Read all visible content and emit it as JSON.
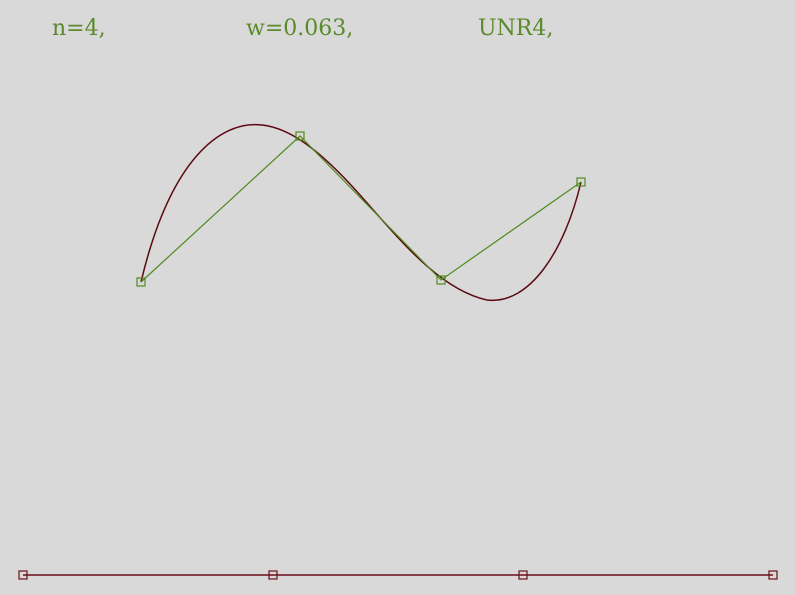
{
  "header": {
    "n_label": "n=4,",
    "w_label": "w=0.063,",
    "scheme_label": "UNR4,"
  },
  "colors": {
    "background": "#d9d9d9",
    "label_color": "#5a8a2a",
    "control_polygon": "#4f8a1e",
    "curve": "#5c0a12",
    "knot_line": "#6a0f18"
  },
  "curve_data": {
    "control_points_count": 4,
    "knot_markers_count": 4
  }
}
